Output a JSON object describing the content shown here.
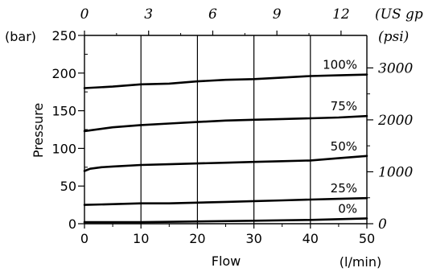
{
  "chart_data": {
    "type": "line",
    "title": "",
    "xlabel": "Flow",
    "xunit": "(l/min)",
    "ylabel": "Pressure",
    "yunit": "(bar)",
    "x_ticks": [
      "0",
      "10",
      "20",
      "30",
      "40",
      "50"
    ],
    "y_ticks": [
      "0",
      "50",
      "100",
      "150",
      "200",
      "250"
    ],
    "xlim": [
      0,
      50
    ],
    "ylim": [
      0,
      250
    ],
    "grid": "vertical lines at every 10 l/min",
    "top_axis": {
      "unit": "(US gpm)",
      "ticks": [
        "0",
        "3",
        "6",
        "9",
        "12"
      ],
      "values": [
        0,
        3,
        6,
        9,
        12
      ]
    },
    "right_axis": {
      "unit": "(psi)",
      "ticks": [
        "0",
        "1000",
        "2000",
        "3000"
      ],
      "values": [
        0,
        1000,
        2000,
        3000
      ]
    },
    "series": [
      {
        "name": "100%",
        "x": [
          0,
          5,
          10,
          15,
          20,
          25,
          30,
          35,
          40,
          45,
          50
        ],
        "y": [
          180,
          182,
          185,
          186,
          189,
          191,
          192,
          194,
          196,
          197,
          198
        ]
      },
      {
        "name": "75%",
        "x": [
          0,
          5,
          10,
          15,
          20,
          25,
          30,
          35,
          40,
          45,
          50
        ],
        "y": [
          123,
          128,
          131,
          133,
          135,
          137,
          138,
          139,
          140,
          141,
          143
        ]
      },
      {
        "name": "50%",
        "x": [
          0,
          1,
          3,
          5,
          10,
          15,
          20,
          25,
          30,
          35,
          40,
          45,
          50
        ],
        "y": [
          70,
          73,
          75,
          76,
          78,
          79,
          80,
          81,
          82,
          83,
          84,
          87,
          90
        ]
      },
      {
        "name": "25%",
        "x": [
          0,
          5,
          10,
          15,
          20,
          25,
          30,
          35,
          40,
          45,
          50
        ],
        "y": [
          25,
          26,
          27,
          27,
          28,
          29,
          30,
          31,
          32,
          33,
          34
        ]
      },
      {
        "name": "0%",
        "x": [
          0,
          10,
          20,
          30,
          40,
          50
        ],
        "y": [
          2,
          2,
          3,
          4,
          5,
          7
        ]
      }
    ],
    "colors": {
      "line": "#000000",
      "background": "#ffffff"
    }
  }
}
